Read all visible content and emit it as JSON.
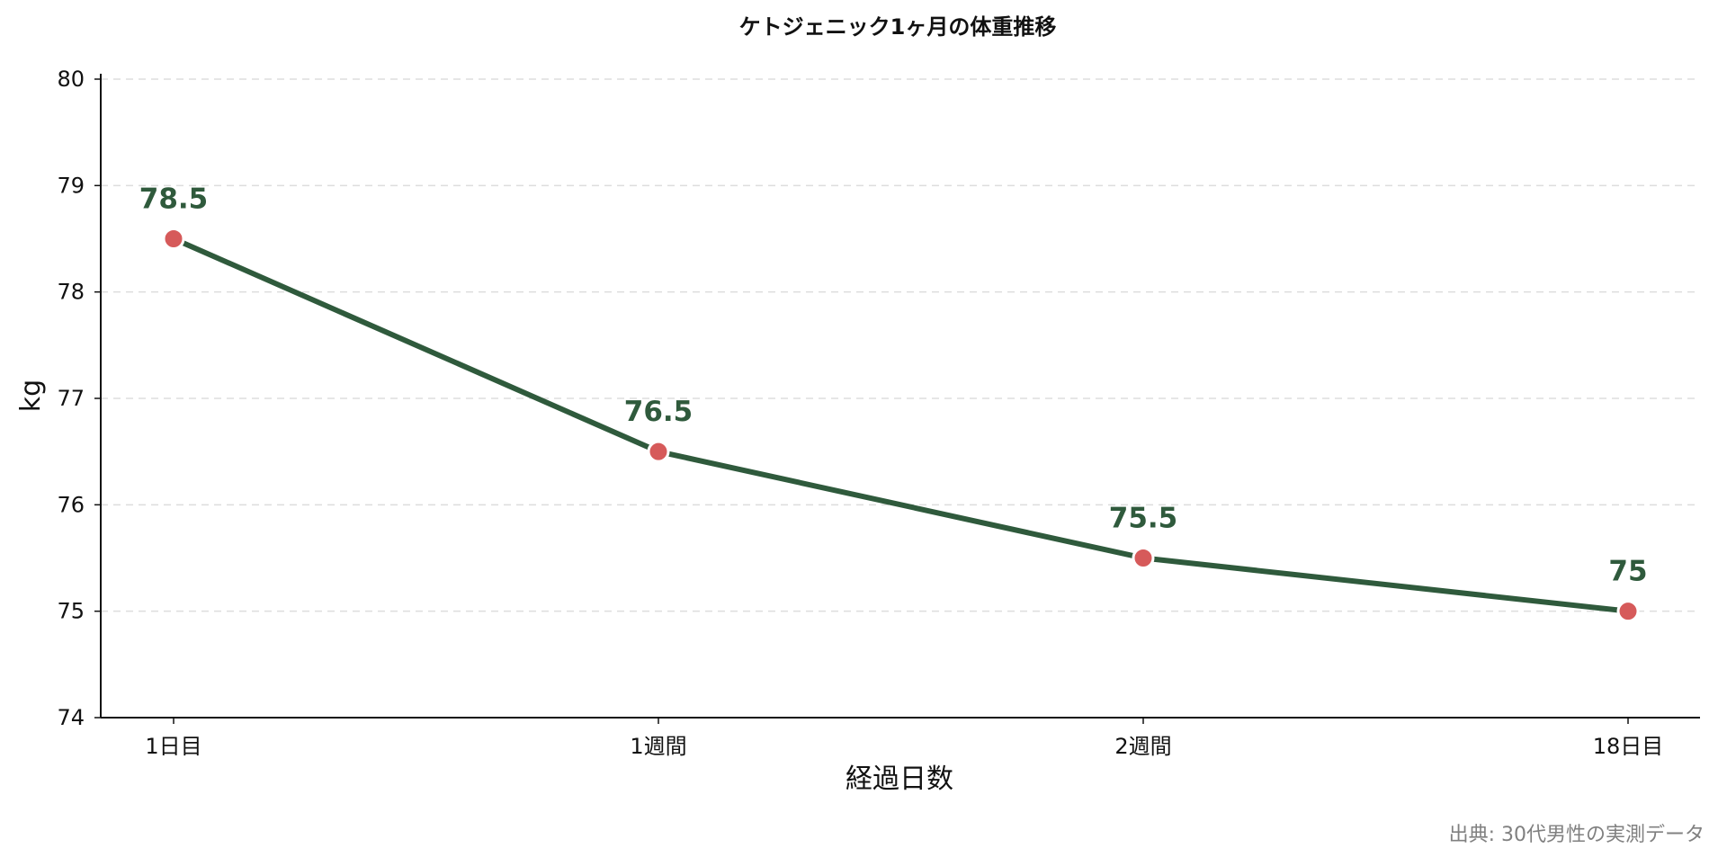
{
  "chart_data": {
    "type": "line",
    "title": "ケトジェニック1ヶ月の体重推移",
    "xlabel": "経過日数",
    "ylabel": "kg",
    "categories": [
      "1日目",
      "1週間",
      "2週間",
      "18日目"
    ],
    "series": [
      {
        "values": [
          78.5,
          76.5,
          75.5,
          75
        ],
        "data_labels": [
          "78.5",
          "76.5",
          "75.5",
          "75"
        ]
      }
    ],
    "ylim": [
      74,
      80
    ],
    "yticks": [
      "74",
      "75",
      "76",
      "77",
      "78",
      "79",
      "80"
    ],
    "grid": "horizontal dashed",
    "source_note": "出典: 30代男性の実測データ",
    "colors": {
      "line": "#2f5a3c",
      "marker": "#d65a5a",
      "marker_edge": "#ffffff",
      "grid": "#dddddd",
      "axis": "#111111",
      "source": "#808080"
    }
  }
}
